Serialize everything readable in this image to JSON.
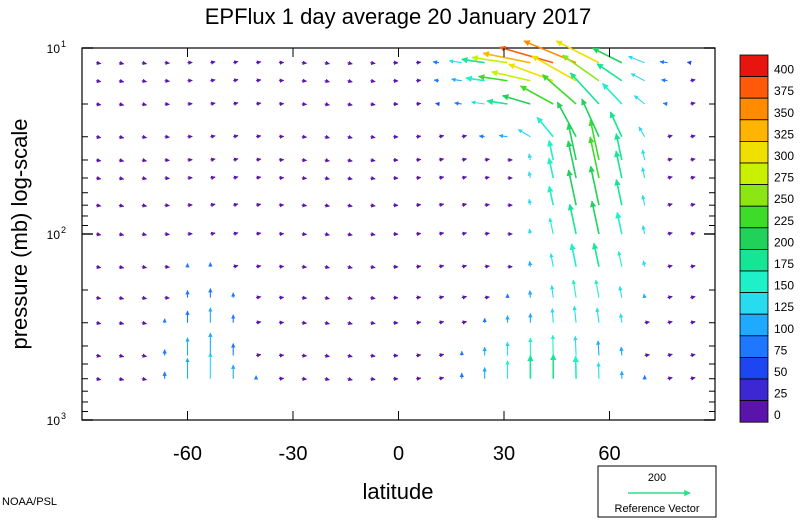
{
  "chart_data": {
    "type": "quiver",
    "title": "EPFlux  1 day average  20 January   2017",
    "xlabel": "latitude",
    "ylabel": "pressure (mb)  log-scale",
    "x_ticks": [
      -60,
      -30,
      0,
      30,
      60
    ],
    "x_tick_labels": [
      "-60",
      "-30",
      "0",
      "30",
      "60"
    ],
    "xlim": [
      -90,
      90
    ],
    "y_scale": "log",
    "ylim": [
      1000,
      10
    ],
    "y_ticks": [
      {
        "value": 10,
        "base": "10",
        "exp": "1"
      },
      {
        "value": 100,
        "base": "10",
        "exp": "2"
      },
      {
        "value": 1000,
        "base": "10",
        "exp": "3"
      }
    ],
    "colorbar": {
      "levels": [
        "400",
        "375",
        "350",
        "325",
        "300",
        "275",
        "250",
        "225",
        "200",
        "175",
        "150",
        "125",
        "100",
        "75",
        "50",
        "25",
        "0"
      ],
      "colors": [
        "#e8150f",
        "#ff5a0a",
        "#ff8c00",
        "#ffb400",
        "#f0e000",
        "#c8f000",
        "#8ce614",
        "#3cdc28",
        "#1ed25a",
        "#14e696",
        "#1ef0c8",
        "#28dcf0",
        "#1eaaff",
        "#1e78ff",
        "#1e46f0",
        "#3c28d2",
        "#5a14aa"
      ]
    },
    "reference_vector": {
      "value": "200",
      "label": "Reference Vector",
      "color": "#2be08a"
    },
    "credit": "NOAA/PSL",
    "field": {
      "lat_start": -86,
      "lat_step": 6.5,
      "pressures": [
        1000,
        600,
        450,
        300,
        220,
        150,
        100,
        70,
        50,
        40,
        30,
        20,
        15,
        12,
        10
      ]
    }
  }
}
